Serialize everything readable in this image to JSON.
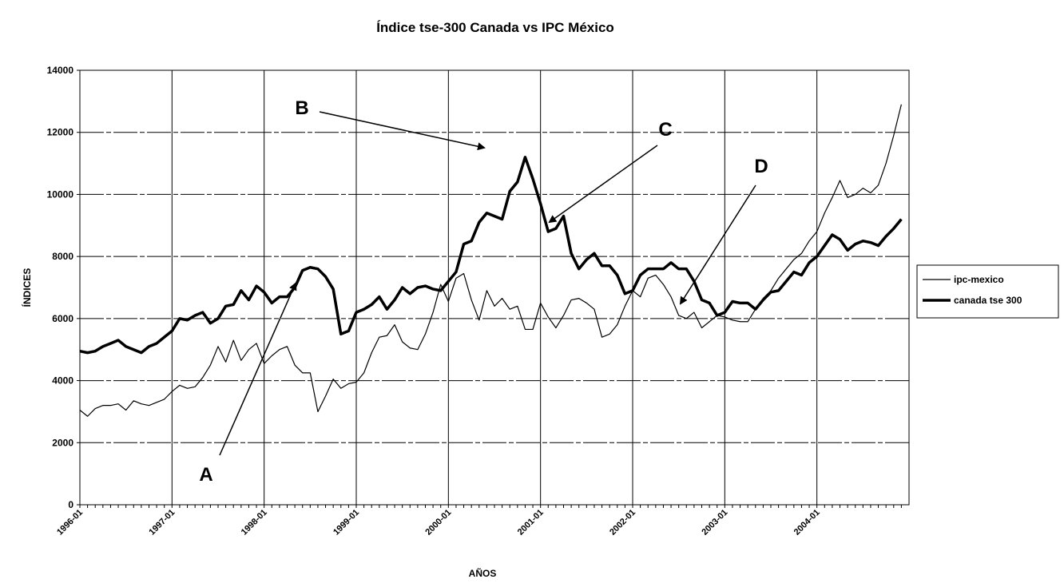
{
  "chart_data": {
    "type": "line",
    "title": "Índice tse-300 Canada vs IPC México",
    "x_label": "AÑOS",
    "y_label": "ÍNDICES",
    "categories": [
      "1996-01",
      null,
      null,
      null,
      null,
      null,
      null,
      null,
      null,
      null,
      null,
      null,
      "1997-01",
      null,
      null,
      null,
      null,
      null,
      null,
      null,
      null,
      null,
      null,
      null,
      "1998-01",
      null,
      null,
      null,
      null,
      null,
      null,
      null,
      null,
      null,
      null,
      null,
      "1999-01",
      null,
      null,
      null,
      null,
      null,
      null,
      null,
      null,
      null,
      null,
      null,
      "2000-01",
      null,
      null,
      null,
      null,
      null,
      null,
      null,
      null,
      null,
      null,
      null,
      "2001-01",
      null,
      null,
      null,
      null,
      null,
      null,
      null,
      null,
      null,
      null,
      null,
      "2002-01",
      null,
      null,
      null,
      null,
      null,
      null,
      null,
      null,
      null,
      null,
      null,
      "2003-01",
      null,
      null,
      null,
      null,
      null,
      null,
      null,
      null,
      null,
      null,
      null,
      "2004-01",
      null,
      null,
      null,
      null,
      null,
      null,
      null,
      null,
      null,
      null,
      null
    ],
    "series": [
      {
        "name": "ipc-mexico",
        "color": "#000000",
        "values": [
          3050,
          2850,
          3100,
          3200,
          3200,
          3250,
          3050,
          3350,
          3250,
          3200,
          3300,
          3400,
          3650,
          3850,
          3750,
          3800,
          4100,
          4500,
          5100,
          4600,
          5300,
          4650,
          5000,
          5200,
          4550,
          4800,
          5000,
          5100,
          4500,
          4250,
          4250,
          3000,
          3500,
          4050,
          3750,
          3900,
          3950,
          4250,
          4900,
          5400,
          5450,
          5800,
          5250,
          5050,
          5000,
          5500,
          6200,
          7100,
          6550,
          7300,
          7450,
          6600,
          5950,
          6900,
          6400,
          6650,
          6300,
          6400,
          5650,
          5650,
          6500,
          6050,
          5700,
          6100,
          6600,
          6650,
          6500,
          6300,
          5400,
          5500,
          5800,
          6400,
          6900,
          6700,
          7300,
          7400,
          7100,
          6700,
          6100,
          6000,
          6200,
          5700,
          5900,
          6100,
          6050,
          5950,
          5900,
          5900,
          6300,
          6650,
          6900,
          7300,
          7600,
          7900,
          8100,
          8500,
          8800,
          9400,
          9900,
          10450,
          9900,
          10000,
          10200,
          10050,
          10300,
          11000,
          11900,
          12900
        ]
      },
      {
        "name": "canada tse 300",
        "color": "#000000",
        "values": [
          4950,
          4900,
          4950,
          5100,
          5200,
          5300,
          5100,
          5000,
          4900,
          5100,
          5200,
          5400,
          5600,
          6000,
          5950,
          6100,
          6200,
          5850,
          6000,
          6400,
          6450,
          6900,
          6600,
          7050,
          6850,
          6500,
          6700,
          6700,
          7000,
          7550,
          7650,
          7600,
          7350,
          6950,
          5500,
          5600,
          6200,
          6300,
          6450,
          6700,
          6300,
          6600,
          7000,
          6800,
          7000,
          7050,
          6950,
          6900,
          7200,
          7500,
          8400,
          8500,
          9100,
          9400,
          9300,
          9200,
          10100,
          10400,
          11200,
          10500,
          9700,
          8800,
          8900,
          9300,
          8100,
          7600,
          7900,
          8100,
          7700,
          7700,
          7400,
          6800,
          6900,
          7400,
          7600,
          7600,
          7600,
          7800,
          7600,
          7600,
          7200,
          6600,
          6500,
          6100,
          6200,
          6550,
          6500,
          6500,
          6300,
          6600,
          6850,
          6900,
          7200,
          7500,
          7400,
          7800,
          8000,
          8350,
          8700,
          8550,
          8200,
          8400,
          8500,
          8450,
          8350,
          8650,
          8900,
          9200
        ]
      }
    ],
    "ylim": [
      0,
      14000
    ],
    "yticks": [
      0,
      2000,
      4000,
      6000,
      8000,
      10000,
      12000,
      14000
    ],
    "grid": true,
    "legend": "right",
    "annotations": [
      "A",
      "B",
      "C",
      "D"
    ]
  }
}
